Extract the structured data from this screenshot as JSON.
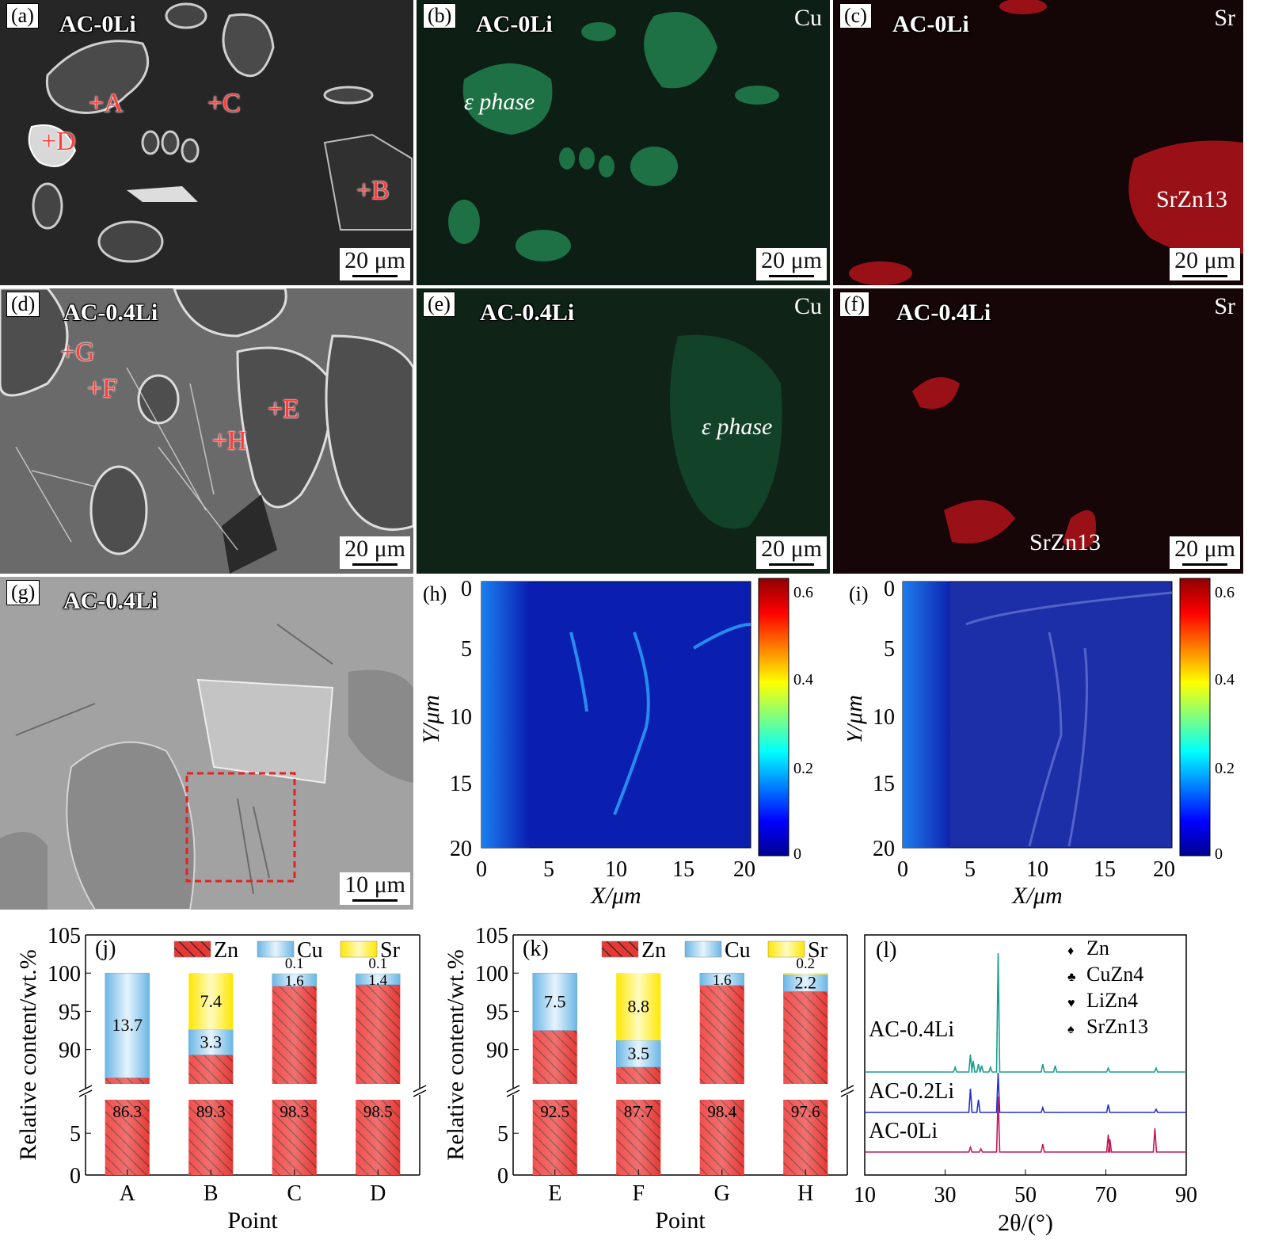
{
  "panels": {
    "a": {
      "label": "(a)",
      "sample": "AC-0Li",
      "scale": "20 μm",
      "points": [
        "+A",
        "+B",
        "+C",
        "+D"
      ]
    },
    "b": {
      "label": "(b)",
      "sample": "AC-0Li",
      "element": "Cu",
      "phase": "ε phase",
      "scale": "20 μm"
    },
    "c": {
      "label": "(c)",
      "sample": "AC-0Li",
      "element": "Sr",
      "phase": "SrZn13",
      "scale": "20 μm"
    },
    "d": {
      "label": "(d)",
      "sample": "AC-0.4Li",
      "scale": "20 μm",
      "points": [
        "+E",
        "+F",
        "+G",
        "+H"
      ]
    },
    "e": {
      "label": "(e)",
      "sample": "AC-0.4Li",
      "element": "Cu",
      "phase": "ε phase",
      "scale": "20 μm"
    },
    "f": {
      "label": "(f)",
      "sample": "AC-0.4Li",
      "element": "Sr",
      "phase": "SrZn13",
      "scale": "20 μm"
    },
    "g": {
      "label": "(g)",
      "sample": "AC-0.4Li",
      "scale": "10 μm"
    },
    "h": {
      "label": "(h)"
    },
    "i": {
      "label": "(i)"
    }
  },
  "colors": {
    "zn": "#e53935",
    "cu": "#8fc8ea",
    "sr": "#ffee33",
    "jet_low": "#00008f",
    "jet_high": "#8f0000"
  },
  "chart_data": [
    {
      "panel": "(h)",
      "type": "heatmap",
      "xlabel": "X/μm",
      "ylabel": "Y/μm",
      "xlim": [
        0,
        20
      ],
      "ylim": [
        20,
        0
      ],
      "x_ticks": [
        "0",
        "5",
        "10",
        "15",
        "20"
      ],
      "y_ticks": [
        "0",
        "5",
        "10",
        "15",
        "20"
      ],
      "colorbar_ticks": [
        "0",
        "0.2",
        "0.4",
        "0.6"
      ],
      "colorbar_range": [
        0,
        0.64
      ]
    },
    {
      "panel": "(i)",
      "type": "heatmap",
      "xlabel": "X/μm",
      "ylabel": "Y/μm",
      "xlim": [
        0,
        20
      ],
      "ylim": [
        20,
        0
      ],
      "x_ticks": [
        "0",
        "5",
        "10",
        "15",
        "20"
      ],
      "y_ticks": [
        "0",
        "5",
        "10",
        "15",
        "20"
      ],
      "colorbar_ticks": [
        "0",
        "0.2",
        "0.4",
        "0.6"
      ],
      "colorbar_range": [
        0,
        0.64
      ]
    },
    {
      "panel": "(j)",
      "type": "bar",
      "stacked": true,
      "categories": [
        "A",
        "B",
        "C",
        "D"
      ],
      "xlabel": "Point",
      "ylabel": "Relative content/wt.%",
      "y_ticks_lower": [
        "0",
        "5"
      ],
      "y_ticks_upper": [
        "90",
        "95",
        "100",
        "105"
      ],
      "series": [
        {
          "name": "Zn",
          "values": [
            86.3,
            89.3,
            98.3,
            98.5
          ],
          "labels": [
            "86.3",
            "89.3",
            "98.3",
            "98.5"
          ]
        },
        {
          "name": "Cu",
          "values": [
            13.7,
            3.3,
            1.6,
            1.4
          ],
          "labels": [
            "13.7",
            "3.3",
            "1.6",
            "1.4"
          ]
        },
        {
          "name": "Sr",
          "values": [
            0,
            7.4,
            0.1,
            0.1
          ],
          "labels": [
            "",
            "7.4",
            "0.1",
            "0.1"
          ]
        }
      ]
    },
    {
      "panel": "(k)",
      "type": "bar",
      "stacked": true,
      "categories": [
        "E",
        "F",
        "G",
        "H"
      ],
      "xlabel": "Point",
      "ylabel": "Relative content/wt.%",
      "y_ticks_lower": [
        "0",
        "5"
      ],
      "y_ticks_upper": [
        "90",
        "95",
        "100",
        "105"
      ],
      "series": [
        {
          "name": "Zn",
          "values": [
            92.5,
            87.7,
            98.4,
            97.6
          ],
          "labels": [
            "92.5",
            "87.7",
            "98.4",
            "97.6"
          ]
        },
        {
          "name": "Cu",
          "values": [
            7.5,
            3.5,
            1.6,
            2.2
          ],
          "labels": [
            "7.5",
            "3.5",
            "1.6",
            "2.2"
          ]
        },
        {
          "name": "Sr",
          "values": [
            0,
            8.8,
            0,
            0.2
          ],
          "labels": [
            "",
            "8.8",
            "",
            "0.2"
          ]
        }
      ]
    },
    {
      "panel": "(l)",
      "type": "line",
      "xlabel": "2θ/(°)",
      "xlim": [
        10,
        90
      ],
      "x_ticks": [
        "10",
        "30",
        "50",
        "70",
        "90"
      ],
      "legend": [
        "Zn",
        "CuZn4",
        "LiZn4",
        "SrZn13"
      ],
      "series": [
        {
          "name": "AC-0.4Li",
          "color": "#1a9e8f",
          "peaks": [
            [
              32.5,
              6
            ],
            [
              36.3,
              22
            ],
            [
              37.0,
              14
            ],
            [
              38.3,
              10
            ],
            [
              39.1,
              8
            ],
            [
              41.3,
              6
            ],
            [
              43.2,
              150
            ],
            [
              54.3,
              10
            ],
            [
              57.4,
              8
            ],
            [
              70.6,
              5
            ],
            [
              82.5,
              5
            ]
          ]
        },
        {
          "name": "AC-0.2Li",
          "color": "#2433c9",
          "peaks": [
            [
              36.3,
              30
            ],
            [
              38.3,
              16
            ],
            [
              43.2,
              50
            ],
            [
              54.3,
              6
            ],
            [
              70.6,
              10
            ],
            [
              82.5,
              4
            ]
          ]
        },
        {
          "name": "AC-0Li",
          "color": "#c2185b",
          "peaks": [
            [
              36.3,
              6
            ],
            [
              38.9,
              4
            ],
            [
              43.2,
              70
            ],
            [
              54.3,
              10
            ],
            [
              70.6,
              22
            ],
            [
              71.0,
              16
            ],
            [
              82.2,
              30
            ]
          ]
        }
      ]
    }
  ]
}
